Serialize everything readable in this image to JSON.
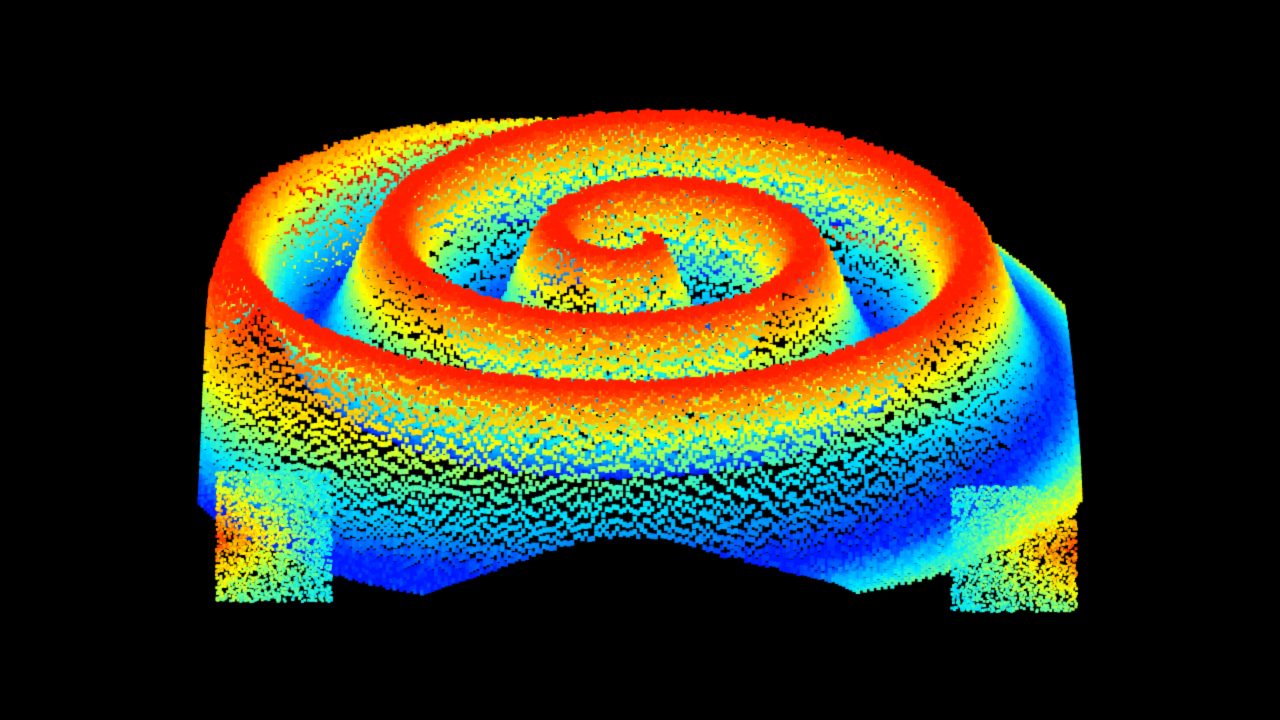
{
  "scene": {
    "background_color": "#000000",
    "subject": "spiral-surface",
    "colormap": "jet",
    "colormap_stops": [
      "#0018ff",
      "#0096ff",
      "#00e8ff",
      "#6bff8c",
      "#ffff00",
      "#ff9c00",
      "#ff1e00"
    ],
    "spiral_turns": 2.6,
    "noise_amplitude": 0.1
  }
}
